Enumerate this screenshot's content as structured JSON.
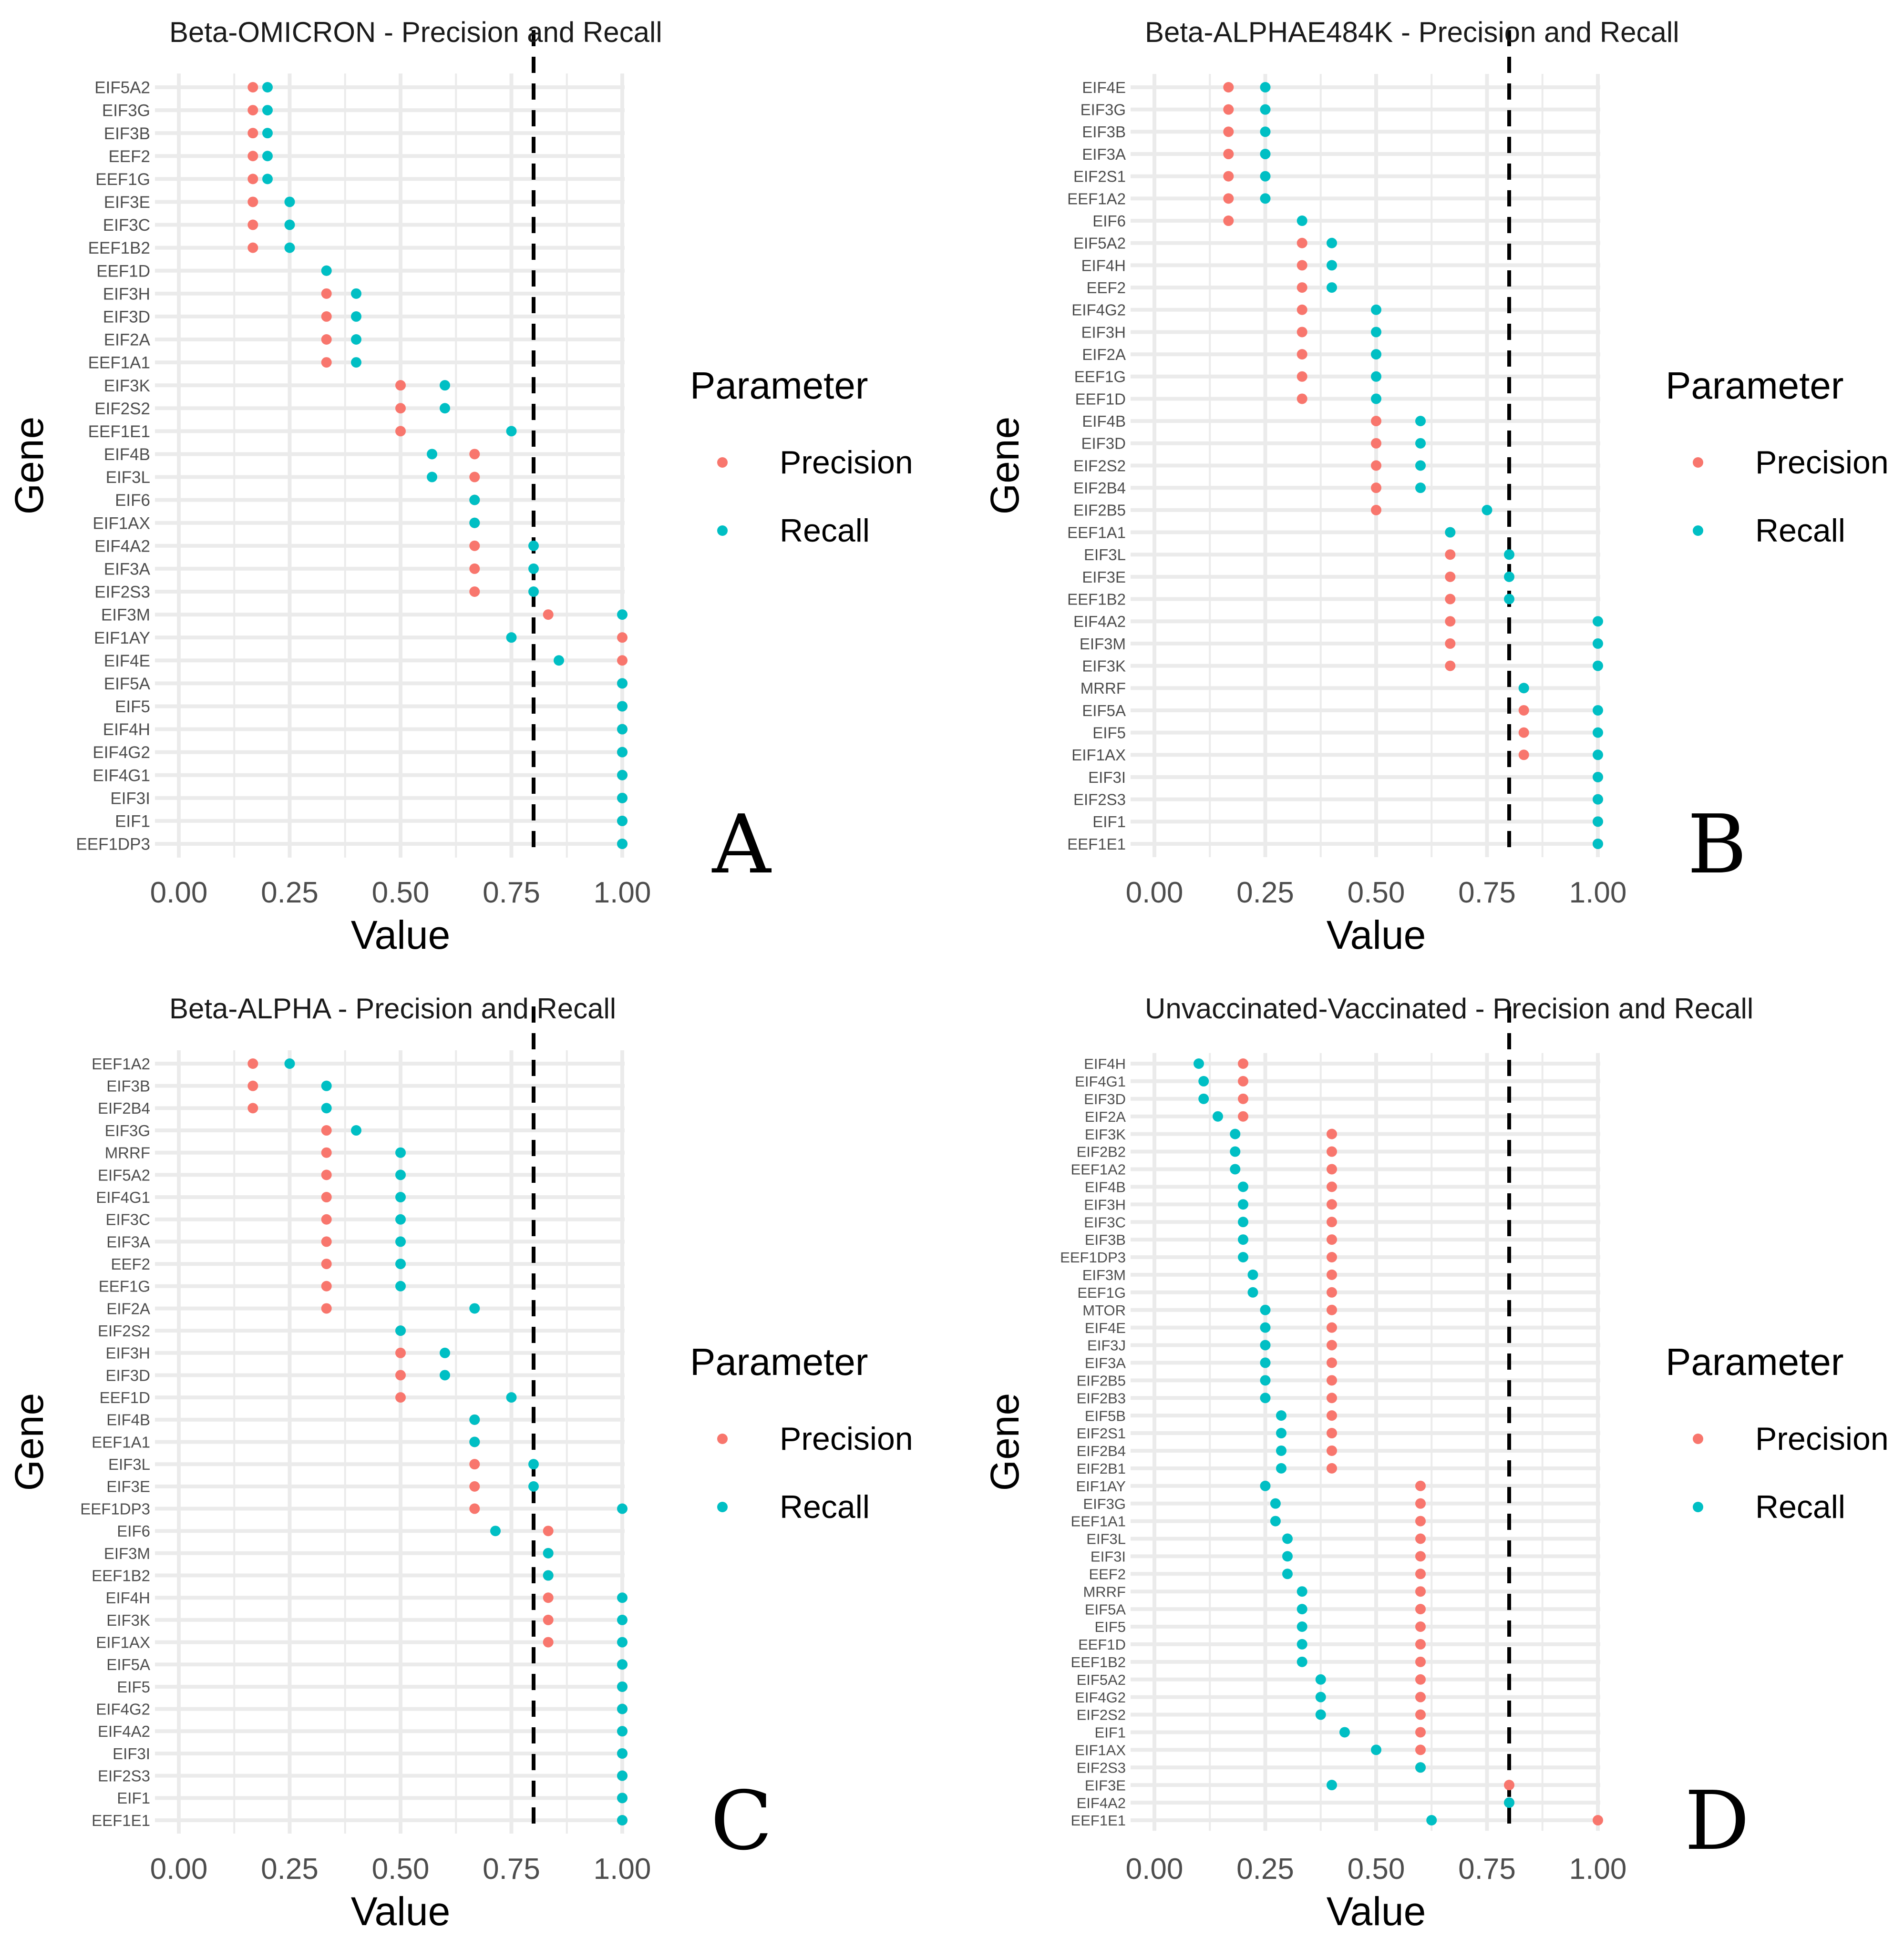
{
  "legend": {
    "title": "Parameter",
    "entries": [
      {
        "label": "Precision",
        "color": "#F8766D"
      },
      {
        "label": "Recall",
        "color": "#00BFC4"
      }
    ]
  },
  "chart_data": [
    {
      "type": "dot",
      "panel_letter": "A",
      "title": "Beta-OMICRON - Precision and Recall",
      "xlabel": "Value",
      "ylabel": "Gene",
      "xlim": [
        0,
        1
      ],
      "xticks": [
        "0.00",
        "0.25",
        "0.50",
        "0.75",
        "1.00"
      ],
      "threshold": 0.8,
      "categories": [
        "EIF5A2",
        "EIF3G",
        "EIF3B",
        "EEF2",
        "EEF1G",
        "EIF3E",
        "EIF3C",
        "EEF1B2",
        "EEF1D",
        "EIF3H",
        "EIF3D",
        "EIF2A",
        "EEF1A1",
        "EIF3K",
        "EIF2S2",
        "EEF1E1",
        "EIF4B",
        "EIF3L",
        "EIF6",
        "EIF1AX",
        "EIF4A2",
        "EIF3A",
        "EIF2S3",
        "EIF3M",
        "EIF1AY",
        "EIF4E",
        "EIF5A",
        "EIF5",
        "EIF4H",
        "EIF4G2",
        "EIF4G1",
        "EIF3I",
        "EIF1",
        "EEF1DP3"
      ],
      "series": [
        {
          "name": "Precision",
          "values": [
            0.167,
            0.167,
            0.167,
            0.167,
            0.167,
            0.167,
            0.167,
            0.167,
            0.333,
            0.333,
            0.333,
            0.333,
            0.333,
            0.5,
            0.5,
            0.5,
            0.667,
            0.667,
            0.667,
            0.667,
            0.667,
            0.667,
            0.667,
            0.833,
            1.0,
            1.0,
            1.0,
            1.0,
            1.0,
            1.0,
            1.0,
            1.0,
            1.0,
            1.0
          ]
        },
        {
          "name": "Recall",
          "values": [
            0.2,
            0.2,
            0.2,
            0.2,
            0.2,
            0.25,
            0.25,
            0.25,
            0.333,
            0.4,
            0.4,
            0.4,
            0.4,
            0.6,
            0.6,
            0.75,
            0.571,
            0.571,
            0.667,
            0.667,
            0.8,
            0.8,
            0.8,
            1.0,
            0.75,
            0.857,
            1.0,
            1.0,
            1.0,
            1.0,
            1.0,
            1.0,
            1.0,
            1.0
          ]
        }
      ]
    },
    {
      "type": "dot",
      "panel_letter": "B",
      "title": "Beta-ALPHAE484K - Precision and Recall",
      "xlabel": "Value",
      "ylabel": "Gene",
      "xlim": [
        0,
        1
      ],
      "xticks": [
        "0.00",
        "0.25",
        "0.50",
        "0.75",
        "1.00"
      ],
      "threshold": 0.8,
      "categories": [
        "EIF4E",
        "EIF3G",
        "EIF3B",
        "EIF3A",
        "EIF2S1",
        "EEF1A2",
        "EIF6",
        "EIF5A2",
        "EIF4H",
        "EEF2",
        "EIF4G2",
        "EIF3H",
        "EIF2A",
        "EEF1G",
        "EEF1D",
        "EIF4B",
        "EIF3D",
        "EIF2S2",
        "EIF2B4",
        "EIF2B5",
        "EEF1A1",
        "EIF3L",
        "EIF3E",
        "EEF1B2",
        "EIF4A2",
        "EIF3M",
        "EIF3K",
        "MRRF",
        "EIF5A",
        "EIF5",
        "EIF1AX",
        "EIF3I",
        "EIF2S3",
        "EIF1",
        "EEF1E1"
      ],
      "series": [
        {
          "name": "Precision",
          "values": [
            0.167,
            0.167,
            0.167,
            0.167,
            0.167,
            0.167,
            0.167,
            0.333,
            0.333,
            0.333,
            0.333,
            0.333,
            0.333,
            0.333,
            0.333,
            0.5,
            0.5,
            0.5,
            0.5,
            0.5,
            0.667,
            0.667,
            0.667,
            0.667,
            0.667,
            0.667,
            0.667,
            0.833,
            0.833,
            0.833,
            0.833,
            1.0,
            1.0,
            1.0,
            1.0
          ]
        },
        {
          "name": "Recall",
          "values": [
            0.25,
            0.25,
            0.25,
            0.25,
            0.25,
            0.25,
            0.333,
            0.4,
            0.4,
            0.4,
            0.5,
            0.5,
            0.5,
            0.5,
            0.5,
            0.6,
            0.6,
            0.6,
            0.6,
            0.75,
            0.667,
            0.8,
            0.8,
            0.8,
            1.0,
            1.0,
            1.0,
            0.833,
            1.0,
            1.0,
            1.0,
            1.0,
            1.0,
            1.0,
            1.0
          ]
        }
      ]
    },
    {
      "type": "dot",
      "panel_letter": "C",
      "title": "Beta-ALPHA - Precision and Recall",
      "xlabel": "Value",
      "ylabel": "Gene",
      "xlim": [
        0,
        1
      ],
      "xticks": [
        "0.00",
        "0.25",
        "0.50",
        "0.75",
        "1.00"
      ],
      "threshold": 0.8,
      "categories": [
        "EEF1A2",
        "EIF3B",
        "EIF2B4",
        "EIF3G",
        "MRRF",
        "EIF5A2",
        "EIF4G1",
        "EIF3C",
        "EIF3A",
        "EEF2",
        "EEF1G",
        "EIF2A",
        "EIF2S2",
        "EIF3H",
        "EIF3D",
        "EEF1D",
        "EIF4B",
        "EEF1A1",
        "EIF3L",
        "EIF3E",
        "EEF1DP3",
        "EIF6",
        "EIF3M",
        "EEF1B2",
        "EIF4H",
        "EIF3K",
        "EIF1AX",
        "EIF5A",
        "EIF5",
        "EIF4G2",
        "EIF4A2",
        "EIF3I",
        "EIF2S3",
        "EIF1",
        "EEF1E1"
      ],
      "series": [
        {
          "name": "Precision",
          "values": [
            0.167,
            0.167,
            0.167,
            0.333,
            0.333,
            0.333,
            0.333,
            0.333,
            0.333,
            0.333,
            0.333,
            0.333,
            0.5,
            0.5,
            0.5,
            0.5,
            0.667,
            0.667,
            0.667,
            0.667,
            0.667,
            0.833,
            0.833,
            0.833,
            0.833,
            0.833,
            0.833,
            1.0,
            1.0,
            1.0,
            1.0,
            1.0,
            1.0,
            1.0,
            1.0
          ]
        },
        {
          "name": "Recall",
          "values": [
            0.25,
            0.333,
            0.333,
            0.4,
            0.5,
            0.5,
            0.5,
            0.5,
            0.5,
            0.5,
            0.5,
            0.667,
            0.5,
            0.6,
            0.6,
            0.75,
            0.667,
            0.667,
            0.8,
            0.8,
            1.0,
            0.714,
            0.833,
            0.833,
            1.0,
            1.0,
            1.0,
            1.0,
            1.0,
            1.0,
            1.0,
            1.0,
            1.0,
            1.0,
            1.0
          ]
        }
      ]
    },
    {
      "type": "dot",
      "panel_letter": "D",
      "title": "Unvaccinated-Vaccinated - Precision and Recall",
      "xlabel": "Value",
      "ylabel": "Gene",
      "xlim": [
        0,
        1
      ],
      "xticks": [
        "0.00",
        "0.25",
        "0.50",
        "0.75",
        "1.00"
      ],
      "threshold": 0.8,
      "categories": [
        "EIF4H",
        "EIF4G1",
        "EIF3D",
        "EIF2A",
        "EIF3K",
        "EIF2B2",
        "EEF1A2",
        "EIF4B",
        "EIF3H",
        "EIF3C",
        "EIF3B",
        "EEF1DP3",
        "EIF3M",
        "EEF1G",
        "MTOR",
        "EIF4E",
        "EIF3J",
        "EIF3A",
        "EIF2B5",
        "EIF2B3",
        "EIF5B",
        "EIF2S1",
        "EIF2B4",
        "EIF2B1",
        "EIF1AY",
        "EIF3G",
        "EEF1A1",
        "EIF3L",
        "EIF3I",
        "EEF2",
        "MRRF",
        "EIF5A",
        "EIF5",
        "EEF1D",
        "EEF1B2",
        "EIF5A2",
        "EIF4G2",
        "EIF2S2",
        "EIF1",
        "EIF1AX",
        "EIF2S3",
        "EIF3E",
        "EIF4A2",
        "EEF1E1"
      ],
      "series": [
        {
          "name": "Precision",
          "values": [
            0.2,
            0.2,
            0.2,
            0.2,
            0.4,
            0.4,
            0.4,
            0.4,
            0.4,
            0.4,
            0.4,
            0.4,
            0.4,
            0.4,
            0.4,
            0.4,
            0.4,
            0.4,
            0.4,
            0.4,
            0.4,
            0.4,
            0.4,
            0.4,
            0.6,
            0.6,
            0.6,
            0.6,
            0.6,
            0.6,
            0.6,
            0.6,
            0.6,
            0.6,
            0.6,
            0.6,
            0.6,
            0.6,
            0.6,
            0.6,
            0.6,
            0.8,
            0.8,
            1.0
          ]
        },
        {
          "name": "Recall",
          "values": [
            0.1,
            0.111,
            0.111,
            0.143,
            0.182,
            0.182,
            0.182,
            0.2,
            0.2,
            0.2,
            0.2,
            0.2,
            0.222,
            0.222,
            0.25,
            0.25,
            0.25,
            0.25,
            0.25,
            0.25,
            0.286,
            0.286,
            0.286,
            0.286,
            0.25,
            0.273,
            0.273,
            0.3,
            0.3,
            0.3,
            0.333,
            0.333,
            0.333,
            0.333,
            0.333,
            0.375,
            0.375,
            0.375,
            0.429,
            0.5,
            0.6,
            0.4,
            0.8,
            0.625
          ]
        }
      ]
    }
  ]
}
